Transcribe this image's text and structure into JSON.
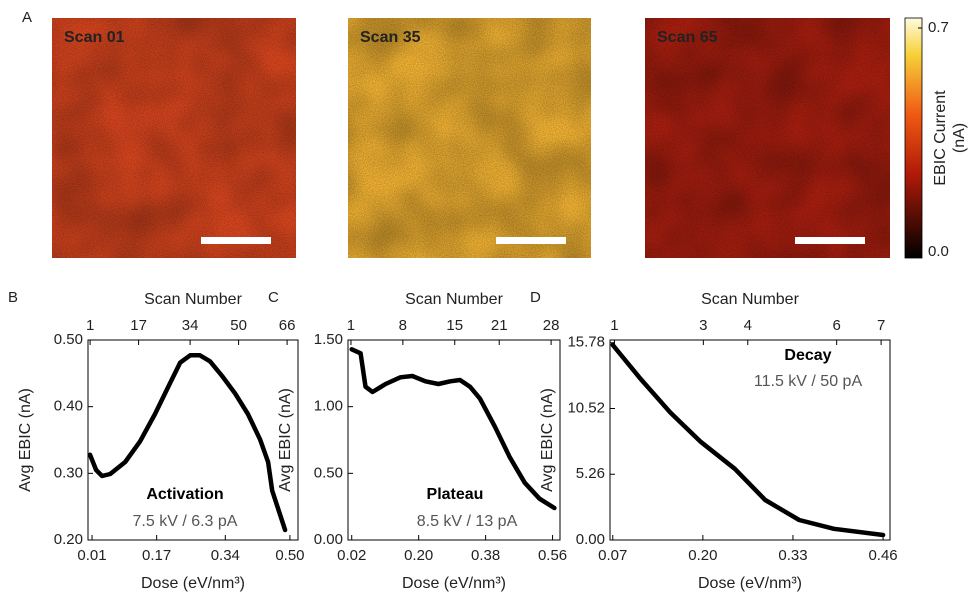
{
  "panel_a": {
    "label": "A",
    "images": [
      {
        "title": "Scan 01",
        "color": "#d9461f",
        "title_color": "#ffffff"
      },
      {
        "title": "Scan 35",
        "color": "#f3b434",
        "title_color": "#000000"
      },
      {
        "title": "Scan 65",
        "color": "#a91f10",
        "title_color": "#ffffff"
      }
    ],
    "colorbar": {
      "label_lines": [
        "EBIC Current",
        "(nA)"
      ],
      "lim": [
        0,
        0.7
      ],
      "ticks": [
        {
          "value": 0,
          "label": "0.0"
        },
        0.7
      ]
    }
  },
  "chart_data": [
    {
      "type": "line",
      "panel_label": "B",
      "x2label": "Scan Number",
      "xlabel": "Dose (eV/nm³)",
      "ylabel": "Avg EBIC (nA)",
      "annotation": "Activation",
      "annotation_sub": "7.5 kV / 6.3 pA",
      "xlim": [
        0,
        0.52
      ],
      "xticks": [
        0.01,
        0.17,
        0.34,
        {
          "value": 0.5,
          "label": "0.50"
        }
      ],
      "x2lim": [
        0.3,
        69.6
      ],
      "x2ticks": [
        1,
        17,
        34,
        50,
        66
      ],
      "ylim": [
        0.2,
        0.5
      ],
      "yticks": [
        {
          "value": 0.2,
          "label": "0.20"
        },
        {
          "value": 0.3,
          "label": "0.30"
        },
        {
          "value": 0.4,
          "label": "0.40"
        },
        {
          "value": 0.5,
          "label": "0.50"
        }
      ],
      "x": [
        0.005,
        0.02,
        0.035,
        0.055,
        0.092,
        0.129,
        0.166,
        0.203,
        0.228,
        0.253,
        0.277,
        0.302,
        0.332,
        0.364,
        0.396,
        0.426,
        0.446,
        0.456,
        0.488
      ],
      "series": [
        {
          "color": "#000000",
          "values": [
            0.328,
            0.305,
            0.296,
            0.299,
            0.317,
            0.348,
            0.389,
            0.435,
            0.466,
            0.477,
            0.477,
            0.468,
            0.446,
            0.42,
            0.389,
            0.351,
            0.317,
            0.274,
            0.215
          ]
        }
      ]
    },
    {
      "type": "line",
      "panel_label": "C",
      "x2label": "Scan Number",
      "xlabel": "Dose (eV/nm³)",
      "ylabel": "Avg EBIC (nA)",
      "annotation": "Plateau",
      "annotation_sub": "8.5 kV / 13 pA",
      "xlim": [
        0.01,
        0.58
      ],
      "xticks": [
        0.02,
        {
          "value": 0.2,
          "label": "0.20"
        },
        0.38,
        0.56
      ],
      "x2lim": [
        0.6,
        29.2
      ],
      "x2ticks": [
        1,
        8,
        15,
        21,
        28
      ],
      "ylim": [
        0,
        1.5
      ],
      "yticks": [
        {
          "value": 0,
          "label": "0.00"
        },
        {
          "value": 0.5,
          "label": "0.50"
        },
        {
          "value": 1,
          "label": "1.00"
        },
        {
          "value": 1.5,
          "label": "1.50"
        }
      ],
      "x": [
        0.02,
        0.044,
        0.057,
        0.076,
        0.111,
        0.151,
        0.183,
        0.218,
        0.253,
        0.285,
        0.311,
        0.338,
        0.365,
        0.405,
        0.445,
        0.485,
        0.525,
        0.565
      ],
      "series": [
        {
          "color": "#000000",
          "values": [
            1.43,
            1.4,
            1.15,
            1.11,
            1.17,
            1.22,
            1.23,
            1.19,
            1.17,
            1.19,
            1.2,
            1.15,
            1.06,
            0.85,
            0.62,
            0.43,
            0.31,
            0.24
          ]
        }
      ]
    },
    {
      "type": "line",
      "panel_label": "D",
      "x2label": "Scan Number",
      "xlabel": "Dose (eV/nm³)",
      "ylabel": "Avg EBIC (nA)",
      "annotation": "Decay",
      "annotation_sub": "11.5 kV / 50 pA",
      "xlim": [
        0.066,
        0.47
      ],
      "xticks": [
        0.07,
        {
          "value": 0.2,
          "label": "0.20"
        },
        0.33,
        0.46
      ],
      "x2lim": [
        0.9,
        7.2
      ],
      "x2ticks": [
        1,
        3,
        4,
        6,
        7
      ],
      "ylim": [
        0,
        16
      ],
      "yticks": [
        {
          "value": 0,
          "label": "0.00"
        },
        5.26,
        10.52,
        15.78
      ],
      "x": [
        0.07,
        0.11,
        0.153,
        0.196,
        0.246,
        0.29,
        0.339,
        0.389,
        0.46
      ],
      "series": [
        {
          "color": "#000000",
          "values": [
            15.6,
            12.9,
            10.2,
            7.9,
            5.7,
            3.2,
            1.6,
            0.9,
            0.4
          ]
        }
      ]
    }
  ]
}
